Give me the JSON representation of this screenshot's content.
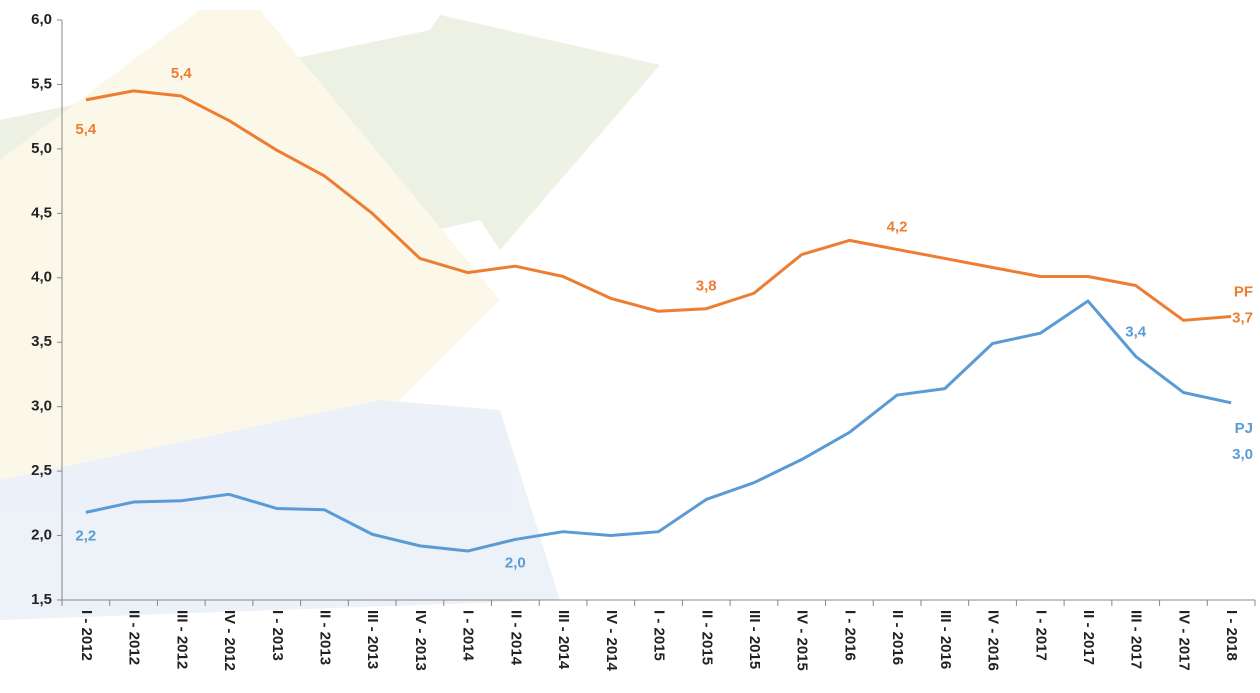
{
  "chart_data": {
    "type": "line",
    "categories": [
      "I - 2012",
      "II - 2012",
      "III - 2012",
      "IV - 2012",
      "I - 2013",
      "II - 2013",
      "III - 2013",
      "IV - 2013",
      "I - 2014",
      "II - 2014",
      "III - 2014",
      "IV - 2014",
      "I - 2015",
      "II - 2015",
      "III - 2015",
      "IV - 2015",
      "I - 2016",
      "II - 2016",
      "III - 2016",
      "IV - 2016",
      "I - 2017",
      "II - 2017",
      "III - 2017",
      "IV - 2017",
      "I - 2018"
    ],
    "series": [
      {
        "name": "PF",
        "color": "#ed7d31",
        "values": [
          5.38,
          5.45,
          5.41,
          5.22,
          4.99,
          4.79,
          4.5,
          4.15,
          4.04,
          4.09,
          4.01,
          3.84,
          3.74,
          3.76,
          3.88,
          4.18,
          4.29,
          4.22,
          4.15,
          4.08,
          4.01,
          4.01,
          3.94,
          3.67,
          3.7
        ],
        "value_labels": [
          "5,4",
          null,
          "5,4",
          null,
          null,
          null,
          null,
          null,
          null,
          null,
          null,
          null,
          null,
          "3,8",
          null,
          null,
          null,
          "4,2",
          null,
          null,
          null,
          null,
          null,
          null,
          "3,7"
        ]
      },
      {
        "name": "PJ",
        "color": "#5b9bd5",
        "values": [
          2.18,
          2.26,
          2.27,
          2.32,
          2.21,
          2.2,
          2.01,
          1.92,
          1.88,
          1.97,
          2.03,
          2.0,
          2.03,
          2.28,
          2.41,
          2.59,
          2.8,
          3.09,
          3.14,
          3.49,
          3.57,
          3.82,
          3.39,
          3.11,
          3.03
        ],
        "value_labels": [
          "2,2",
          null,
          null,
          null,
          null,
          null,
          null,
          null,
          null,
          "2,0",
          null,
          null,
          null,
          null,
          null,
          null,
          null,
          null,
          null,
          null,
          null,
          null,
          "3,4",
          null,
          "3,0"
        ]
      }
    ],
    "ylim": [
      1.5,
      6.0
    ],
    "yticks": [
      {
        "value": 1.5,
        "label": "1,5"
      },
      {
        "value": 2.0,
        "label": "2,0"
      },
      {
        "value": 2.5,
        "label": "2,5"
      },
      {
        "value": 3.0,
        "label": "3,0"
      },
      {
        "value": 3.5,
        "label": "3,5"
      },
      {
        "value": 4.0,
        "label": "4,0"
      },
      {
        "value": 4.5,
        "label": "4,5"
      },
      {
        "value": 5.0,
        "label": "5,0"
      },
      {
        "value": 5.5,
        "label": "5,5"
      },
      {
        "value": 6.0,
        "label": "6,0"
      }
    ]
  }
}
